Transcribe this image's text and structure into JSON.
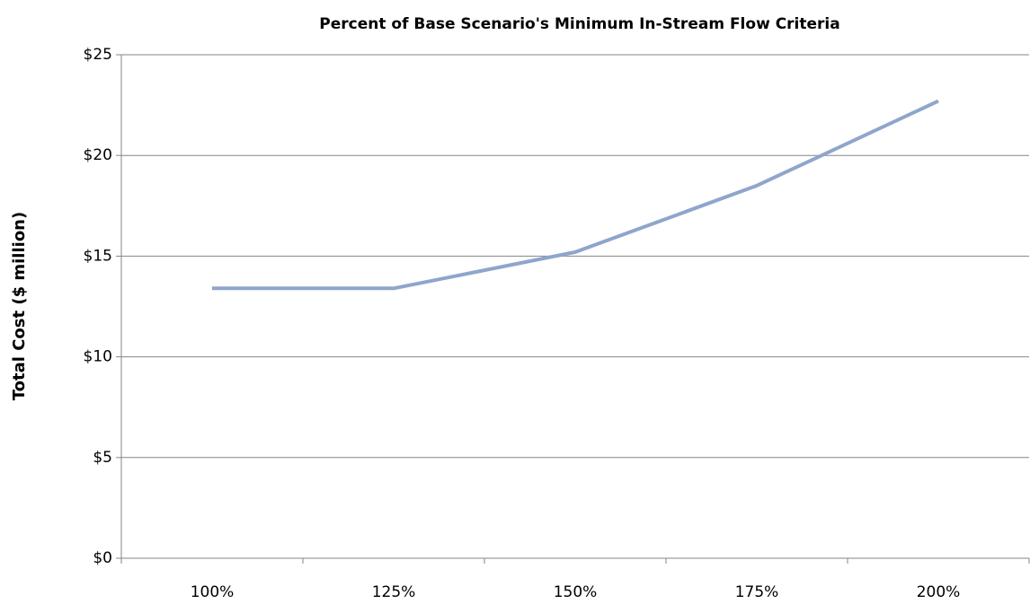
{
  "chart_data": {
    "type": "line",
    "title": "Percent of Base Scenario's Minimum In-Stream Flow Criteria",
    "y_label": "Total Cost ($ million)",
    "categories": [
      "100%",
      "125%",
      "150%",
      "175%",
      "200%"
    ],
    "series": [
      {
        "name": "Total Cost",
        "color": "#8fa5cc",
        "values": [
          13.4,
          13.4,
          15.2,
          18.5,
          22.7
        ]
      }
    ],
    "ylim": [
      0,
      25
    ],
    "yticks": [
      {
        "value": 0,
        "label": "$0"
      },
      {
        "value": 5,
        "label": "$5"
      },
      {
        "value": 10,
        "label": "$10"
      },
      {
        "value": 15,
        "label": "$15"
      },
      {
        "value": 20,
        "label": "$20"
      },
      {
        "value": 25,
        "label": "$25"
      }
    ],
    "grid": true,
    "legend": false
  }
}
